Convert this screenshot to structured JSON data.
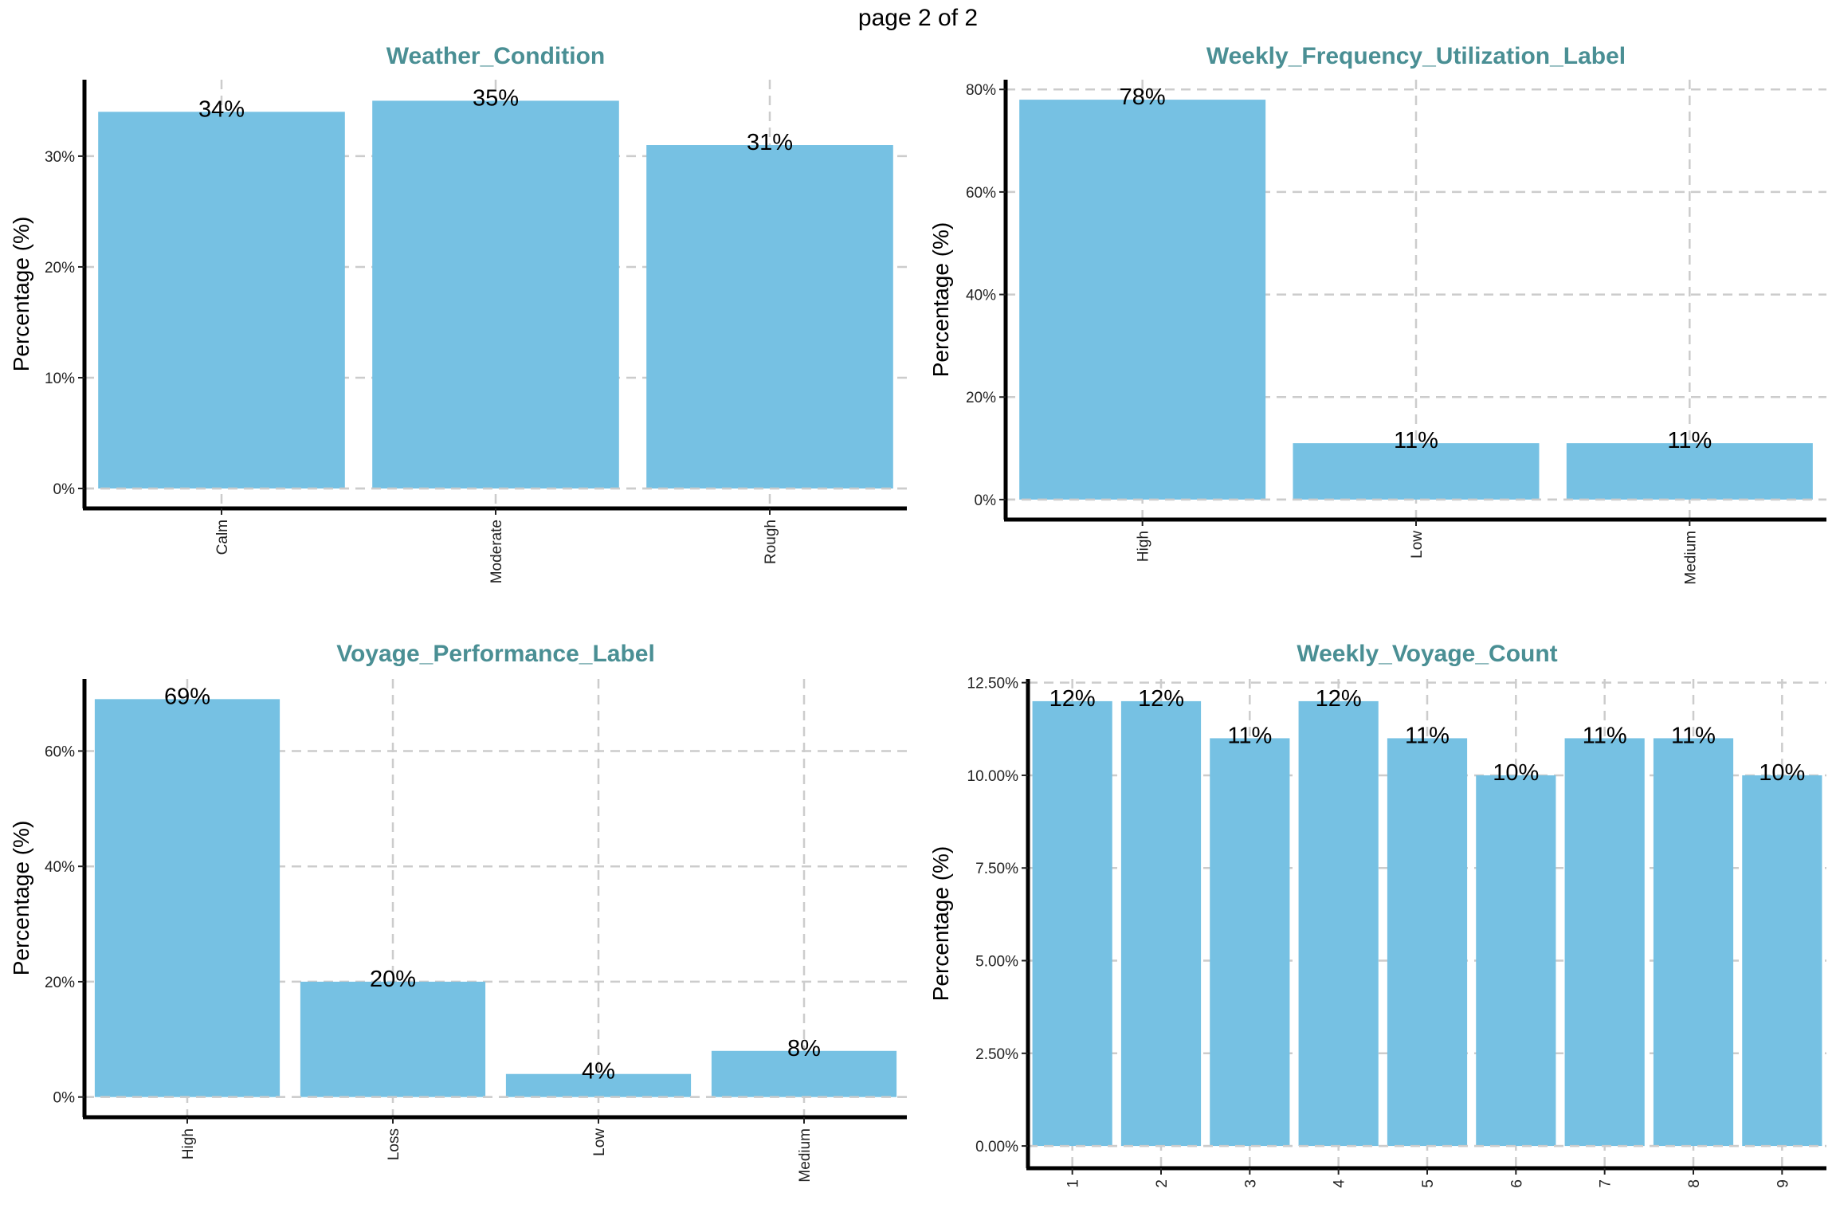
{
  "page_title": "page 2 of 2",
  "colors": {
    "bar": "#76c1e3",
    "title": "#4a8f94",
    "grid": "#cccccc"
  },
  "chart_data": [
    {
      "type": "bar",
      "title": "Weather_Condition",
      "ylabel": "Percentage (%)",
      "xlabel": "",
      "categories": [
        "Calm",
        "Moderate",
        "Rough"
      ],
      "values": [
        34,
        35,
        31
      ],
      "data_labels": [
        "34%",
        "35%",
        "31%"
      ],
      "yticks": [
        0,
        10,
        20,
        30
      ],
      "ytick_labels": [
        "0%",
        "10%",
        "20%",
        "30%"
      ],
      "ylim": [
        -1.8,
        36.9
      ],
      "grid": true
    },
    {
      "type": "bar",
      "title": "Weekly_Frequency_Utilization_Label",
      "ylabel": "Percentage (%)",
      "xlabel": "",
      "categories": [
        "High",
        "Low",
        "Medium"
      ],
      "values": [
        78,
        11,
        11
      ],
      "data_labels": [
        "78%",
        "11%",
        "11%"
      ],
      "yticks": [
        0,
        20,
        40,
        60,
        80
      ],
      "ytick_labels": [
        "0%",
        "20%",
        "40%",
        "60%",
        "80%"
      ],
      "ylim": [
        -3.9,
        81.9
      ],
      "grid": true
    },
    {
      "type": "bar",
      "title": "Voyage_Performance_Label",
      "ylabel": "Percentage (%)",
      "xlabel": "",
      "categories": [
        "High",
        "Loss",
        "Low",
        "Medium"
      ],
      "values": [
        69,
        20,
        4,
        8
      ],
      "data_labels": [
        "69%",
        "20%",
        "4%",
        "8%"
      ],
      "yticks": [
        0,
        20,
        40,
        60
      ],
      "ytick_labels": [
        "0%",
        "20%",
        "40%",
        "60%"
      ],
      "ylim": [
        -3.5,
        72.5
      ],
      "grid": true
    },
    {
      "type": "bar",
      "title": "Weekly_Voyage_Count",
      "ylabel": "Percentage (%)",
      "xlabel": "",
      "categories": [
        "1",
        "2",
        "3",
        "4",
        "5",
        "6",
        "7",
        "8",
        "9"
      ],
      "values": [
        12,
        12,
        11,
        12,
        11,
        10,
        11,
        11,
        10
      ],
      "data_labels": [
        "12%",
        "12%",
        "11%",
        "12%",
        "11%",
        "10%",
        "11%",
        "11%",
        "10%"
      ],
      "yticks": [
        0,
        2.5,
        5,
        7.5,
        10,
        12.5
      ],
      "ytick_labels": [
        "0.00%",
        "2.50%",
        "5.00%",
        "7.50%",
        "10.00%",
        "12.50%"
      ],
      "ylim": [
        -0.6,
        12.6
      ],
      "grid": true
    }
  ]
}
